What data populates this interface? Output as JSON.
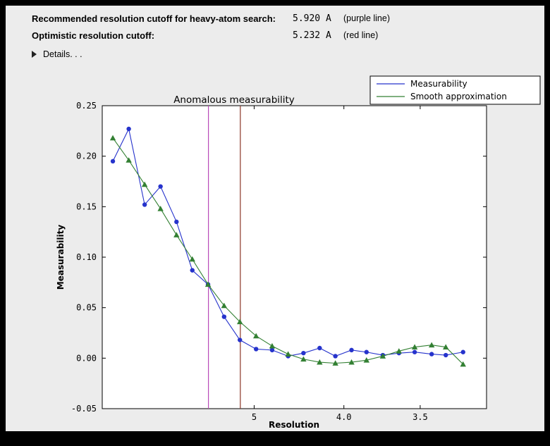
{
  "header": {
    "rows": [
      {
        "label": "Recommended resolution cutoff for heavy-atom search:",
        "value": "5.920 A",
        "note": "(purple line)"
      },
      {
        "label": "Optimistic resolution cutoff:",
        "value": "5.232 A",
        "note": "(red line)"
      }
    ],
    "details_label": "Details. . ."
  },
  "chart_data": {
    "type": "line",
    "title": "Anomalous measurability",
    "xlabel": "Resolution",
    "ylabel": "Measurability",
    "legend_position": "upper right",
    "grid": false,
    "x_axis": {
      "scale": "1/d^2 (resolution in Angstrom, decreasing d to the right)",
      "left_d": 22.9,
      "right_d": 3.19,
      "ticks": [
        {
          "d": 5.0,
          "label": "5"
        },
        {
          "d": 4.0,
          "label": "4.0"
        },
        {
          "d": 3.5,
          "label": "3.5"
        }
      ]
    },
    "y_axis": {
      "min": -0.05,
      "max": 0.25,
      "ticks": [
        {
          "v": 0.25,
          "label": "0.25"
        },
        {
          "v": 0.2,
          "label": "0.20"
        },
        {
          "v": 0.15,
          "label": "0.15"
        },
        {
          "v": 0.1,
          "label": "0.10"
        },
        {
          "v": 0.05,
          "label": "0.05"
        },
        {
          "v": 0.0,
          "label": "0.00"
        },
        {
          "v": -0.05,
          "label": "-0.05"
        }
      ]
    },
    "x_d": [
      14.8,
      10.81,
      8.93,
      7.78,
      6.98,
      6.39,
      5.93,
      5.55,
      5.24,
      4.97,
      4.74,
      4.54,
      4.37,
      4.21,
      4.07,
      3.94,
      3.83,
      3.72,
      3.62,
      3.53,
      3.44,
      3.37,
      3.29
    ],
    "series": [
      {
        "name": "Measurability",
        "color": "#2633cc",
        "marker": "circle",
        "values": [
          0.195,
          0.227,
          0.152,
          0.17,
          0.135,
          0.087,
          0.073,
          0.041,
          0.018,
          0.009,
          0.008,
          0.002,
          0.005,
          0.01,
          0.002,
          0.008,
          0.006,
          0.003,
          0.005,
          0.006,
          0.004,
          0.003,
          0.006
        ]
      },
      {
        "name": "Smooth approximation",
        "color": "#338033",
        "marker": "triangle",
        "values": [
          0.218,
          0.196,
          0.172,
          0.148,
          0.122,
          0.098,
          0.073,
          0.052,
          0.036,
          0.022,
          0.012,
          0.004,
          -0.001,
          -0.004,
          -0.005,
          -0.004,
          -0.002,
          0.002,
          0.007,
          0.011,
          0.013,
          0.011,
          -0.006
        ]
      }
    ],
    "vlines": [
      {
        "d": 5.92,
        "color": "#b84ab8",
        "name": "purple-line"
      },
      {
        "d": 5.232,
        "color": "#8b3626",
        "name": "red-line"
      }
    ]
  }
}
